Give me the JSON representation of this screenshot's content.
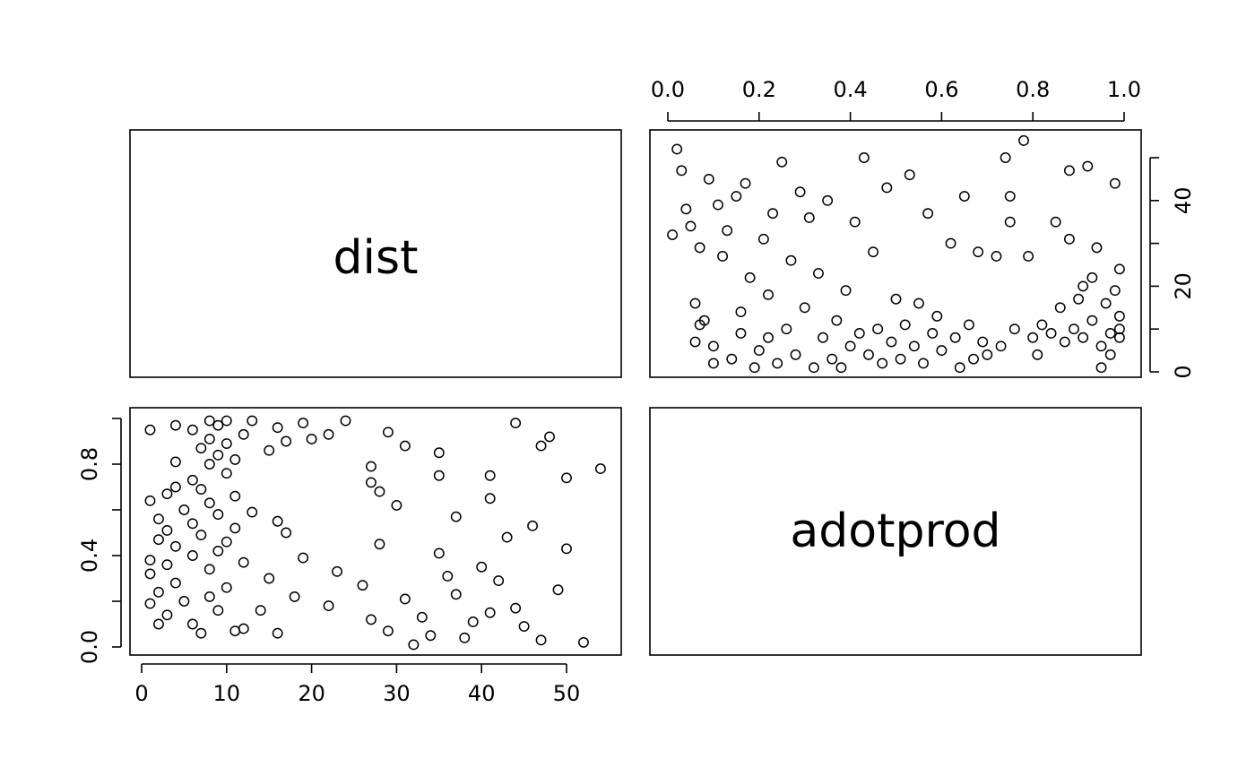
{
  "chart_data": {
    "type": "scatter",
    "variables": [
      "dist",
      "adotprod"
    ],
    "axes": {
      "dist": {
        "range": [
          0,
          55
        ],
        "ticks": [
          0,
          10,
          20,
          30,
          40,
          50
        ],
        "tick_labels": [
          "0",
          "10",
          "20",
          "30",
          "40",
          "50"
        ]
      },
      "adotprod": {
        "range": [
          0,
          1
        ],
        "ticks_x": [
          0.0,
          0.2,
          0.4,
          0.6,
          0.8,
          1.0
        ],
        "tick_labels_x": [
          "0.0",
          "0.2",
          "0.4",
          "0.6",
          "0.8",
          "1.0"
        ],
        "ticks_y": [
          0.0,
          0.4,
          0.8
        ],
        "tick_labels_y": [
          "0.0",
          "0.4",
          "0.8"
        ]
      },
      "dist_right": {
        "ticks": [
          0,
          20,
          40
        ],
        "tick_labels": [
          "0",
          "20",
          "40"
        ]
      }
    },
    "grid": false,
    "points": [
      {
        "dist": 32,
        "adotprod": 0.01
      },
      {
        "dist": 52,
        "adotprod": 0.02
      },
      {
        "dist": 47,
        "adotprod": 0.03
      },
      {
        "dist": 38,
        "adotprod": 0.04
      },
      {
        "dist": 34,
        "adotprod": 0.05
      },
      {
        "dist": 7,
        "adotprod": 0.06
      },
      {
        "dist": 29,
        "adotprod": 0.07
      },
      {
        "dist": 12,
        "adotprod": 0.08
      },
      {
        "dist": 11,
        "adotprod": 0.07
      },
      {
        "dist": 45,
        "adotprod": 0.09
      },
      {
        "dist": 16,
        "adotprod": 0.06
      },
      {
        "dist": 2,
        "adotprod": 0.1
      },
      {
        "dist": 39,
        "adotprod": 0.11
      },
      {
        "dist": 27,
        "adotprod": 0.12
      },
      {
        "dist": 6,
        "adotprod": 0.1
      },
      {
        "dist": 33,
        "adotprod": 0.13
      },
      {
        "dist": 3,
        "adotprod": 0.14
      },
      {
        "dist": 41,
        "adotprod": 0.15
      },
      {
        "dist": 14,
        "adotprod": 0.16
      },
      {
        "dist": 9,
        "adotprod": 0.16
      },
      {
        "dist": 44,
        "adotprod": 0.17
      },
      {
        "dist": 22,
        "adotprod": 0.18
      },
      {
        "dist": 1,
        "adotprod": 0.19
      },
      {
        "dist": 5,
        "adotprod": 0.2
      },
      {
        "dist": 31,
        "adotprod": 0.21
      },
      {
        "dist": 8,
        "adotprod": 0.22
      },
      {
        "dist": 18,
        "adotprod": 0.22
      },
      {
        "dist": 37,
        "adotprod": 0.23
      },
      {
        "dist": 2,
        "adotprod": 0.24
      },
      {
        "dist": 49,
        "adotprod": 0.25
      },
      {
        "dist": 10,
        "adotprod": 0.26
      },
      {
        "dist": 26,
        "adotprod": 0.27
      },
      {
        "dist": 4,
        "adotprod": 0.28
      },
      {
        "dist": 42,
        "adotprod": 0.29
      },
      {
        "dist": 15,
        "adotprod": 0.3
      },
      {
        "dist": 36,
        "adotprod": 0.31
      },
      {
        "dist": 1,
        "adotprod": 0.32
      },
      {
        "dist": 23,
        "adotprod": 0.33
      },
      {
        "dist": 8,
        "adotprod": 0.34
      },
      {
        "dist": 40,
        "adotprod": 0.35
      },
      {
        "dist": 3,
        "adotprod": 0.36
      },
      {
        "dist": 12,
        "adotprod": 0.37
      },
      {
        "dist": 1,
        "adotprod": 0.38
      },
      {
        "dist": 19,
        "adotprod": 0.39
      },
      {
        "dist": 6,
        "adotprod": 0.4
      },
      {
        "dist": 35,
        "adotprod": 0.41
      },
      {
        "dist": 9,
        "adotprod": 0.42
      },
      {
        "dist": 50,
        "adotprod": 0.43
      },
      {
        "dist": 4,
        "adotprod": 0.44
      },
      {
        "dist": 28,
        "adotprod": 0.45
      },
      {
        "dist": 10,
        "adotprod": 0.46
      },
      {
        "dist": 2,
        "adotprod": 0.47
      },
      {
        "dist": 43,
        "adotprod": 0.48
      },
      {
        "dist": 7,
        "adotprod": 0.49
      },
      {
        "dist": 17,
        "adotprod": 0.5
      },
      {
        "dist": 3,
        "adotprod": 0.51
      },
      {
        "dist": 11,
        "adotprod": 0.52
      },
      {
        "dist": 46,
        "adotprod": 0.53
      },
      {
        "dist": 6,
        "adotprod": 0.54
      },
      {
        "dist": 16,
        "adotprod": 0.55
      },
      {
        "dist": 2,
        "adotprod": 0.56
      },
      {
        "dist": 37,
        "adotprod": 0.57
      },
      {
        "dist": 9,
        "adotprod": 0.58
      },
      {
        "dist": 13,
        "adotprod": 0.59
      },
      {
        "dist": 5,
        "adotprod": 0.6
      },
      {
        "dist": 30,
        "adotprod": 0.62
      },
      {
        "dist": 8,
        "adotprod": 0.63
      },
      {
        "dist": 1,
        "adotprod": 0.64
      },
      {
        "dist": 41,
        "adotprod": 0.65
      },
      {
        "dist": 11,
        "adotprod": 0.66
      },
      {
        "dist": 3,
        "adotprod": 0.67
      },
      {
        "dist": 28,
        "adotprod": 0.68
      },
      {
        "dist": 7,
        "adotprod": 0.69
      },
      {
        "dist": 4,
        "adotprod": 0.7
      },
      {
        "dist": 27,
        "adotprod": 0.72
      },
      {
        "dist": 6,
        "adotprod": 0.73
      },
      {
        "dist": 50,
        "adotprod": 0.74
      },
      {
        "dist": 35,
        "adotprod": 0.75
      },
      {
        "dist": 41,
        "adotprod": 0.75
      },
      {
        "dist": 10,
        "adotprod": 0.76
      },
      {
        "dist": 54,
        "adotprod": 0.78
      },
      {
        "dist": 27,
        "adotprod": 0.79
      },
      {
        "dist": 8,
        "adotprod": 0.8
      },
      {
        "dist": 4,
        "adotprod": 0.81
      },
      {
        "dist": 11,
        "adotprod": 0.82
      },
      {
        "dist": 9,
        "adotprod": 0.84
      },
      {
        "dist": 35,
        "adotprod": 0.85
      },
      {
        "dist": 15,
        "adotprod": 0.86
      },
      {
        "dist": 7,
        "adotprod": 0.87
      },
      {
        "dist": 47,
        "adotprod": 0.88
      },
      {
        "dist": 31,
        "adotprod": 0.88
      },
      {
        "dist": 10,
        "adotprod": 0.89
      },
      {
        "dist": 17,
        "adotprod": 0.9
      },
      {
        "dist": 8,
        "adotprod": 0.91
      },
      {
        "dist": 20,
        "adotprod": 0.91
      },
      {
        "dist": 48,
        "adotprod": 0.92
      },
      {
        "dist": 12,
        "adotprod": 0.93
      },
      {
        "dist": 22,
        "adotprod": 0.93
      },
      {
        "dist": 29,
        "adotprod": 0.94
      },
      {
        "dist": 6,
        "adotprod": 0.95
      },
      {
        "dist": 1,
        "adotprod": 0.95
      },
      {
        "dist": 16,
        "adotprod": 0.96
      },
      {
        "dist": 9,
        "adotprod": 0.97
      },
      {
        "dist": 4,
        "adotprod": 0.97
      },
      {
        "dist": 44,
        "adotprod": 0.98
      },
      {
        "dist": 19,
        "adotprod": 0.98
      },
      {
        "dist": 8,
        "adotprod": 0.99
      },
      {
        "dist": 24,
        "adotprod": 0.99
      },
      {
        "dist": 10,
        "adotprod": 0.99
      },
      {
        "dist": 13,
        "adotprod": 0.99
      }
    ]
  }
}
